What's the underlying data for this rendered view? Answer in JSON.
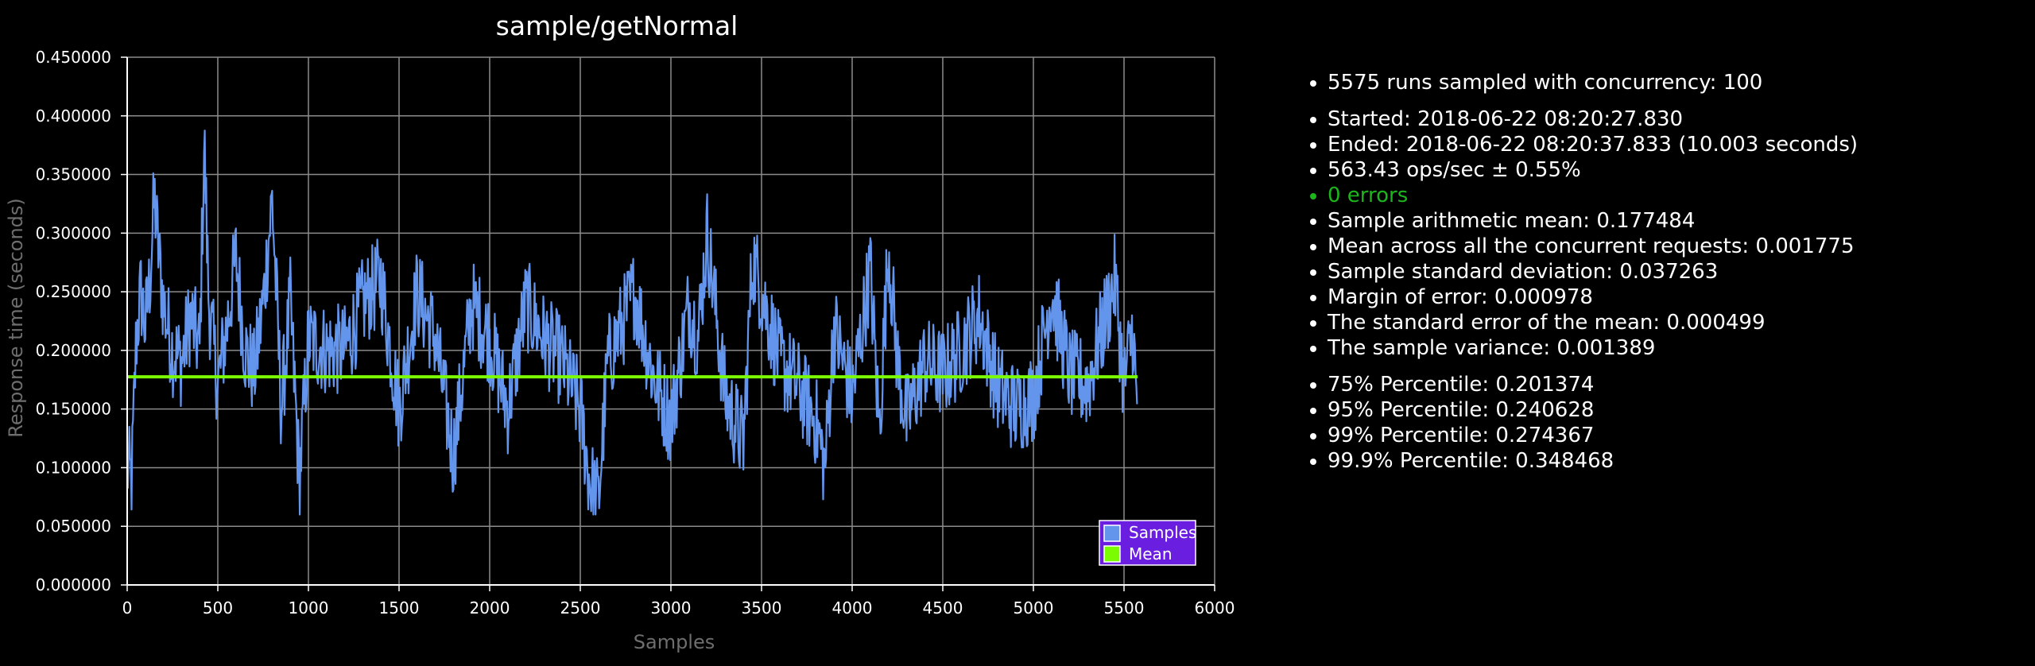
{
  "chart_data": {
    "type": "line",
    "title": "sample/getNormal",
    "xlabel": "Samples",
    "ylabel": "Response time (seconds)",
    "xlim": [
      0,
      6000
    ],
    "ylim": [
      0,
      0.45
    ],
    "xticks": [
      0,
      500,
      1000,
      1500,
      2000,
      2500,
      3000,
      3500,
      4000,
      4500,
      5000,
      5500,
      6000
    ],
    "xtick_labels": [
      "0",
      "500",
      "1000",
      "1500",
      "2000",
      "2500",
      "3000",
      "3500",
      "4000",
      "4500",
      "5000",
      "5500",
      "6000"
    ],
    "yticks": [
      0,
      0.05,
      0.1,
      0.15,
      0.2,
      0.25,
      0.3,
      0.35,
      0.4,
      0.45
    ],
    "ytick_labels": [
      "0.000000",
      "0.050000",
      "0.100000",
      "0.150000",
      "0.200000",
      "0.250000",
      "0.300000",
      "0.350000",
      "0.400000",
      "0.450000"
    ],
    "grid": true,
    "legend_position": "bottom-right",
    "series": [
      {
        "name": "Samples",
        "color": "#6495ed",
        "x": [
          0,
          25,
          50,
          75,
          100,
          125,
          150,
          175,
          200,
          250,
          300,
          350,
          400,
          425,
          450,
          500,
          550,
          600,
          650,
          700,
          750,
          800,
          850,
          900,
          950,
          1000,
          1100,
          1200,
          1300,
          1400,
          1500,
          1600,
          1700,
          1800,
          1900,
          2000,
          2100,
          2200,
          2300,
          2400,
          2500,
          2550,
          2600,
          2650,
          2700,
          2800,
          2900,
          3000,
          3100,
          3150,
          3200,
          3300,
          3400,
          3450,
          3500,
          3600,
          3700,
          3800,
          3850,
          3900,
          4000,
          4100,
          4150,
          4200,
          4250,
          4300,
          4400,
          4500,
          4600,
          4700,
          4800,
          4900,
          5000,
          5100,
          5200,
          5300,
          5400,
          5450,
          5500,
          5550,
          5575
        ],
        "y": [
          0.1,
          0.09,
          0.21,
          0.25,
          0.22,
          0.26,
          0.33,
          0.28,
          0.24,
          0.2,
          0.19,
          0.23,
          0.2,
          0.38,
          0.24,
          0.17,
          0.22,
          0.28,
          0.2,
          0.18,
          0.24,
          0.33,
          0.15,
          0.24,
          0.09,
          0.21,
          0.2,
          0.2,
          0.24,
          0.26,
          0.15,
          0.25,
          0.21,
          0.11,
          0.24,
          0.21,
          0.15,
          0.24,
          0.21,
          0.19,
          0.15,
          0.09,
          0.07,
          0.19,
          0.21,
          0.25,
          0.18,
          0.14,
          0.24,
          0.21,
          0.3,
          0.16,
          0.12,
          0.28,
          0.25,
          0.19,
          0.17,
          0.14,
          0.1,
          0.22,
          0.16,
          0.27,
          0.13,
          0.29,
          0.19,
          0.14,
          0.19,
          0.18,
          0.2,
          0.23,
          0.17,
          0.15,
          0.16,
          0.25,
          0.18,
          0.17,
          0.23,
          0.26,
          0.17,
          0.22,
          0.13
        ],
        "band": 0.08
      },
      {
        "name": "Mean",
        "color": "#7cfc00",
        "x": [
          0,
          5575
        ],
        "y": [
          0.177484,
          0.177484
        ]
      }
    ]
  },
  "stats": {
    "group1": [
      "5575 runs sampled with concurrency: 100"
    ],
    "group2": [
      "Started: 2018-06-22 08:20:27.830",
      "Ended: 2018-06-22 08:20:37.833 (10.003 seconds)",
      "563.43 ops/sec ± 0.55%"
    ],
    "errors": "0 errors",
    "group2b": [
      "Sample arithmetic mean: 0.177484",
      "Mean across all the concurrent requests: 0.001775",
      "Sample standard deviation: 0.037263",
      "Margin of error: 0.000978",
      "The standard error of the mean: 0.000499",
      "The sample variance: 0.001389"
    ],
    "group3": [
      "75% Percentile: 0.201374",
      "95% Percentile: 0.240628",
      "99% Percentile: 0.274367",
      "99.9% Percentile: 0.348468"
    ]
  },
  "colors": {
    "background": "#000000",
    "grid": "#8c8c8c",
    "axis_title": "#6e6e6e",
    "errors_ok": "#1db51d",
    "legend_bg": "#6a1fe0"
  }
}
